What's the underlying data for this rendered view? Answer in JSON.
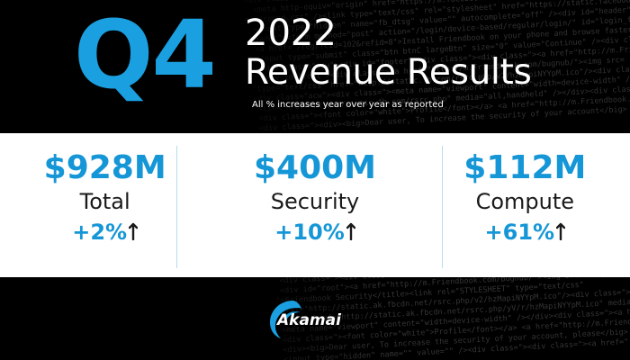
{
  "header": {
    "quarter": "Q4",
    "year": "2022",
    "title": "Revenue Results",
    "subtitle": "All % increases year over year as reported"
  },
  "metrics": [
    {
      "amount": "$928M",
      "label": "Total",
      "change": "+2%"
    },
    {
      "amount": "$400M",
      "label": "Security",
      "change": "+10%"
    },
    {
      "amount": "$112M",
      "label": "Compute",
      "change": "+61%"
    }
  ],
  "brand": {
    "name": "Akamai",
    "accent_color": "#1aa0e0",
    "logo_icon": "akamai-wave-icon",
    "arrow_icon": "arrow-up-icon"
  }
}
